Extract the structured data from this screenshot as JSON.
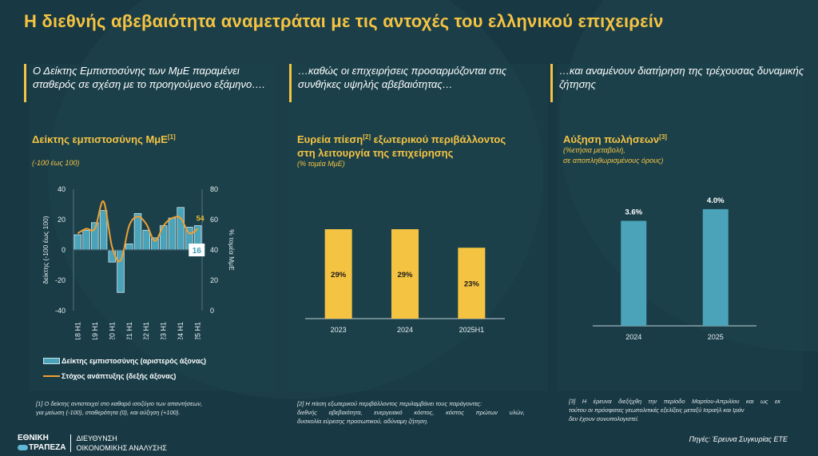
{
  "header": {
    "title": "Η διεθνής αβεβαιότητα αναμετράται με τις αντοχές του ελληνικού επιχειρείν"
  },
  "intros": [
    "Ο Δείκτης Εμπιστοσύνης των ΜμΕ παραμένει σταθερός σε σχέση με το προηγούμενο εξάμηνο….",
    "…καθώς οι επιχειρήσεις προσαρμόζονται στις συνθήκες υψηλής αβεβαιότητας…",
    "…και αναμένουν διατήρηση της τρέχουσας δυναμικής ζήτησης"
  ],
  "colors": {
    "accent": "#f5c342",
    "bar_blue": "#4aa3b8",
    "line_orange": "#f0a030",
    "background": "#183843"
  },
  "chart_data": [
    {
      "type": "bar",
      "title": "Δείκτης εμπιστοσύνης ΜμΕ",
      "title_footnote": "[1]",
      "subtitle": "(-100 έως 100)",
      "ylabel": "δείκτης (-100 έως 100)",
      "ylabel_right": "% τομέα ΜμΕ",
      "ylim": [
        -40,
        40
      ],
      "yticks": [
        "40",
        "20",
        "0",
        "-20",
        "-40"
      ],
      "ylim_right": [
        0,
        80
      ],
      "yticks_right": [
        "80",
        "60",
        "40",
        "20",
        "0"
      ],
      "x_tick_labels": [
        "2018 H1",
        "2019 H1",
        "2020 H1",
        "2021 H1",
        "2022 H1",
        "2023 H1",
        "2024 H1",
        "2025 H1"
      ],
      "categories": [
        "2018 H1",
        "2018 H2",
        "2019 H1",
        "2019 H2",
        "2020 H1",
        "2020 H2",
        "2021 H1",
        "2021 H2",
        "2022 H1",
        "2022 H2",
        "2023 H1",
        "2023 H2",
        "2024 H1",
        "2024 H2",
        "2025 H1"
      ],
      "series": [
        {
          "name": "Δείκτης εμπιστοσύνης (αριστερός άξονας)",
          "kind": "bar",
          "axis": "left",
          "values": [
            10,
            13,
            18,
            26,
            -8,
            -28,
            4,
            24,
            13,
            8,
            16,
            21,
            28,
            15,
            16
          ]
        },
        {
          "name": "Στόχος ανάπτυξης (δεξής άξονας)",
          "kind": "line",
          "axis": "right",
          "values": [
            51,
            54,
            54,
            72,
            42,
            33,
            56,
            62,
            57,
            46,
            56,
            61,
            61,
            51,
            54
          ]
        }
      ],
      "annotations": [
        {
          "label": "54",
          "series": "line",
          "index": 14
        },
        {
          "label": "16",
          "series": "bar",
          "index": 14
        }
      ],
      "legend": "bottom"
    },
    {
      "type": "bar",
      "title": "Ευρεία πίεση εξωτερικού περιβάλλοντος στη λειτουργία της επιχείρησης",
      "title_part1": "Ευρεία πίεση",
      "title_footnote": "[2]",
      "title_part2": " εξωτερικού περιβάλλοντος",
      "title_line2": "στη λειτουργία της επιχείρησης",
      "subtitle": "(% τομέα ΜμΕ)",
      "categories": [
        "2023",
        "2024",
        "2025H1"
      ],
      "values": [
        29,
        29,
        23
      ],
      "data_labels": [
        "29%",
        "29%",
        "23%"
      ],
      "ylim": [
        0,
        36
      ],
      "xlabel": "",
      "ylabel": ""
    },
    {
      "type": "bar",
      "title": "Αύξηση πωλήσεων",
      "title_footnote": "[3]",
      "subtitle_line1": "(%ετήσια μεταβολή,",
      "subtitle_line2": "σε αποπληθωρισμένους όρους)",
      "categories": [
        "2024",
        "2025"
      ],
      "values": [
        3.6,
        4.0
      ],
      "data_labels": [
        "3.6%",
        "4.0%"
      ],
      "ylim": [
        0,
        4.6
      ],
      "xlabel": "",
      "ylabel": ""
    }
  ],
  "footnotes": {
    "f1_line1": "[1]  Ο δείκτης αντιστοιχεί στο καθαρό ισοζύγιο των απαντήσεων,",
    "f1_line2": "για μείωση (-100), σταθερότητα (0), και αύξηση (+100).",
    "f2_line1": "[2] Η πίεση εξωτερικού περιβάλλοντος περιλαμβάνει τους παράγοντες:",
    "f2_line2": "διεθνής αβεβαιότητα, ενεργειακό κόστος, κόστος πρώτων υλών,",
    "f2_line3": "δυσκολία εύρεσης προσωπικού, αδύναμη ζήτηση.",
    "f3_line1": "[3] Η έρευνα διεξήχθη την περίοδο Μαρτίου-Απριλίου και ως εκ",
    "f3_line2": "τούτου οι πρόσφατες γεωπολιτικές εξελίξεις μεταξύ Ισραήλ και Ιράν",
    "f3_line3": "δεν έχουν συνυπολογιστεί."
  },
  "source": "Πηγές: Έρευνα Συγκυρίας ΕΤΕ",
  "logo": {
    "name_line1": "ΕΘΝΙΚΗ",
    "name_line2": "ΤΡΑΠΕΖΑ",
    "dept_line1": "ΔΙΕΥΘΥΝΣΗ",
    "dept_line2": "ΟΙΚΟΝΟΜΙΚΗΣ ΑΝΑΛΥΣΗΣ",
    "icon": "bank-logo-pill-icon"
  }
}
